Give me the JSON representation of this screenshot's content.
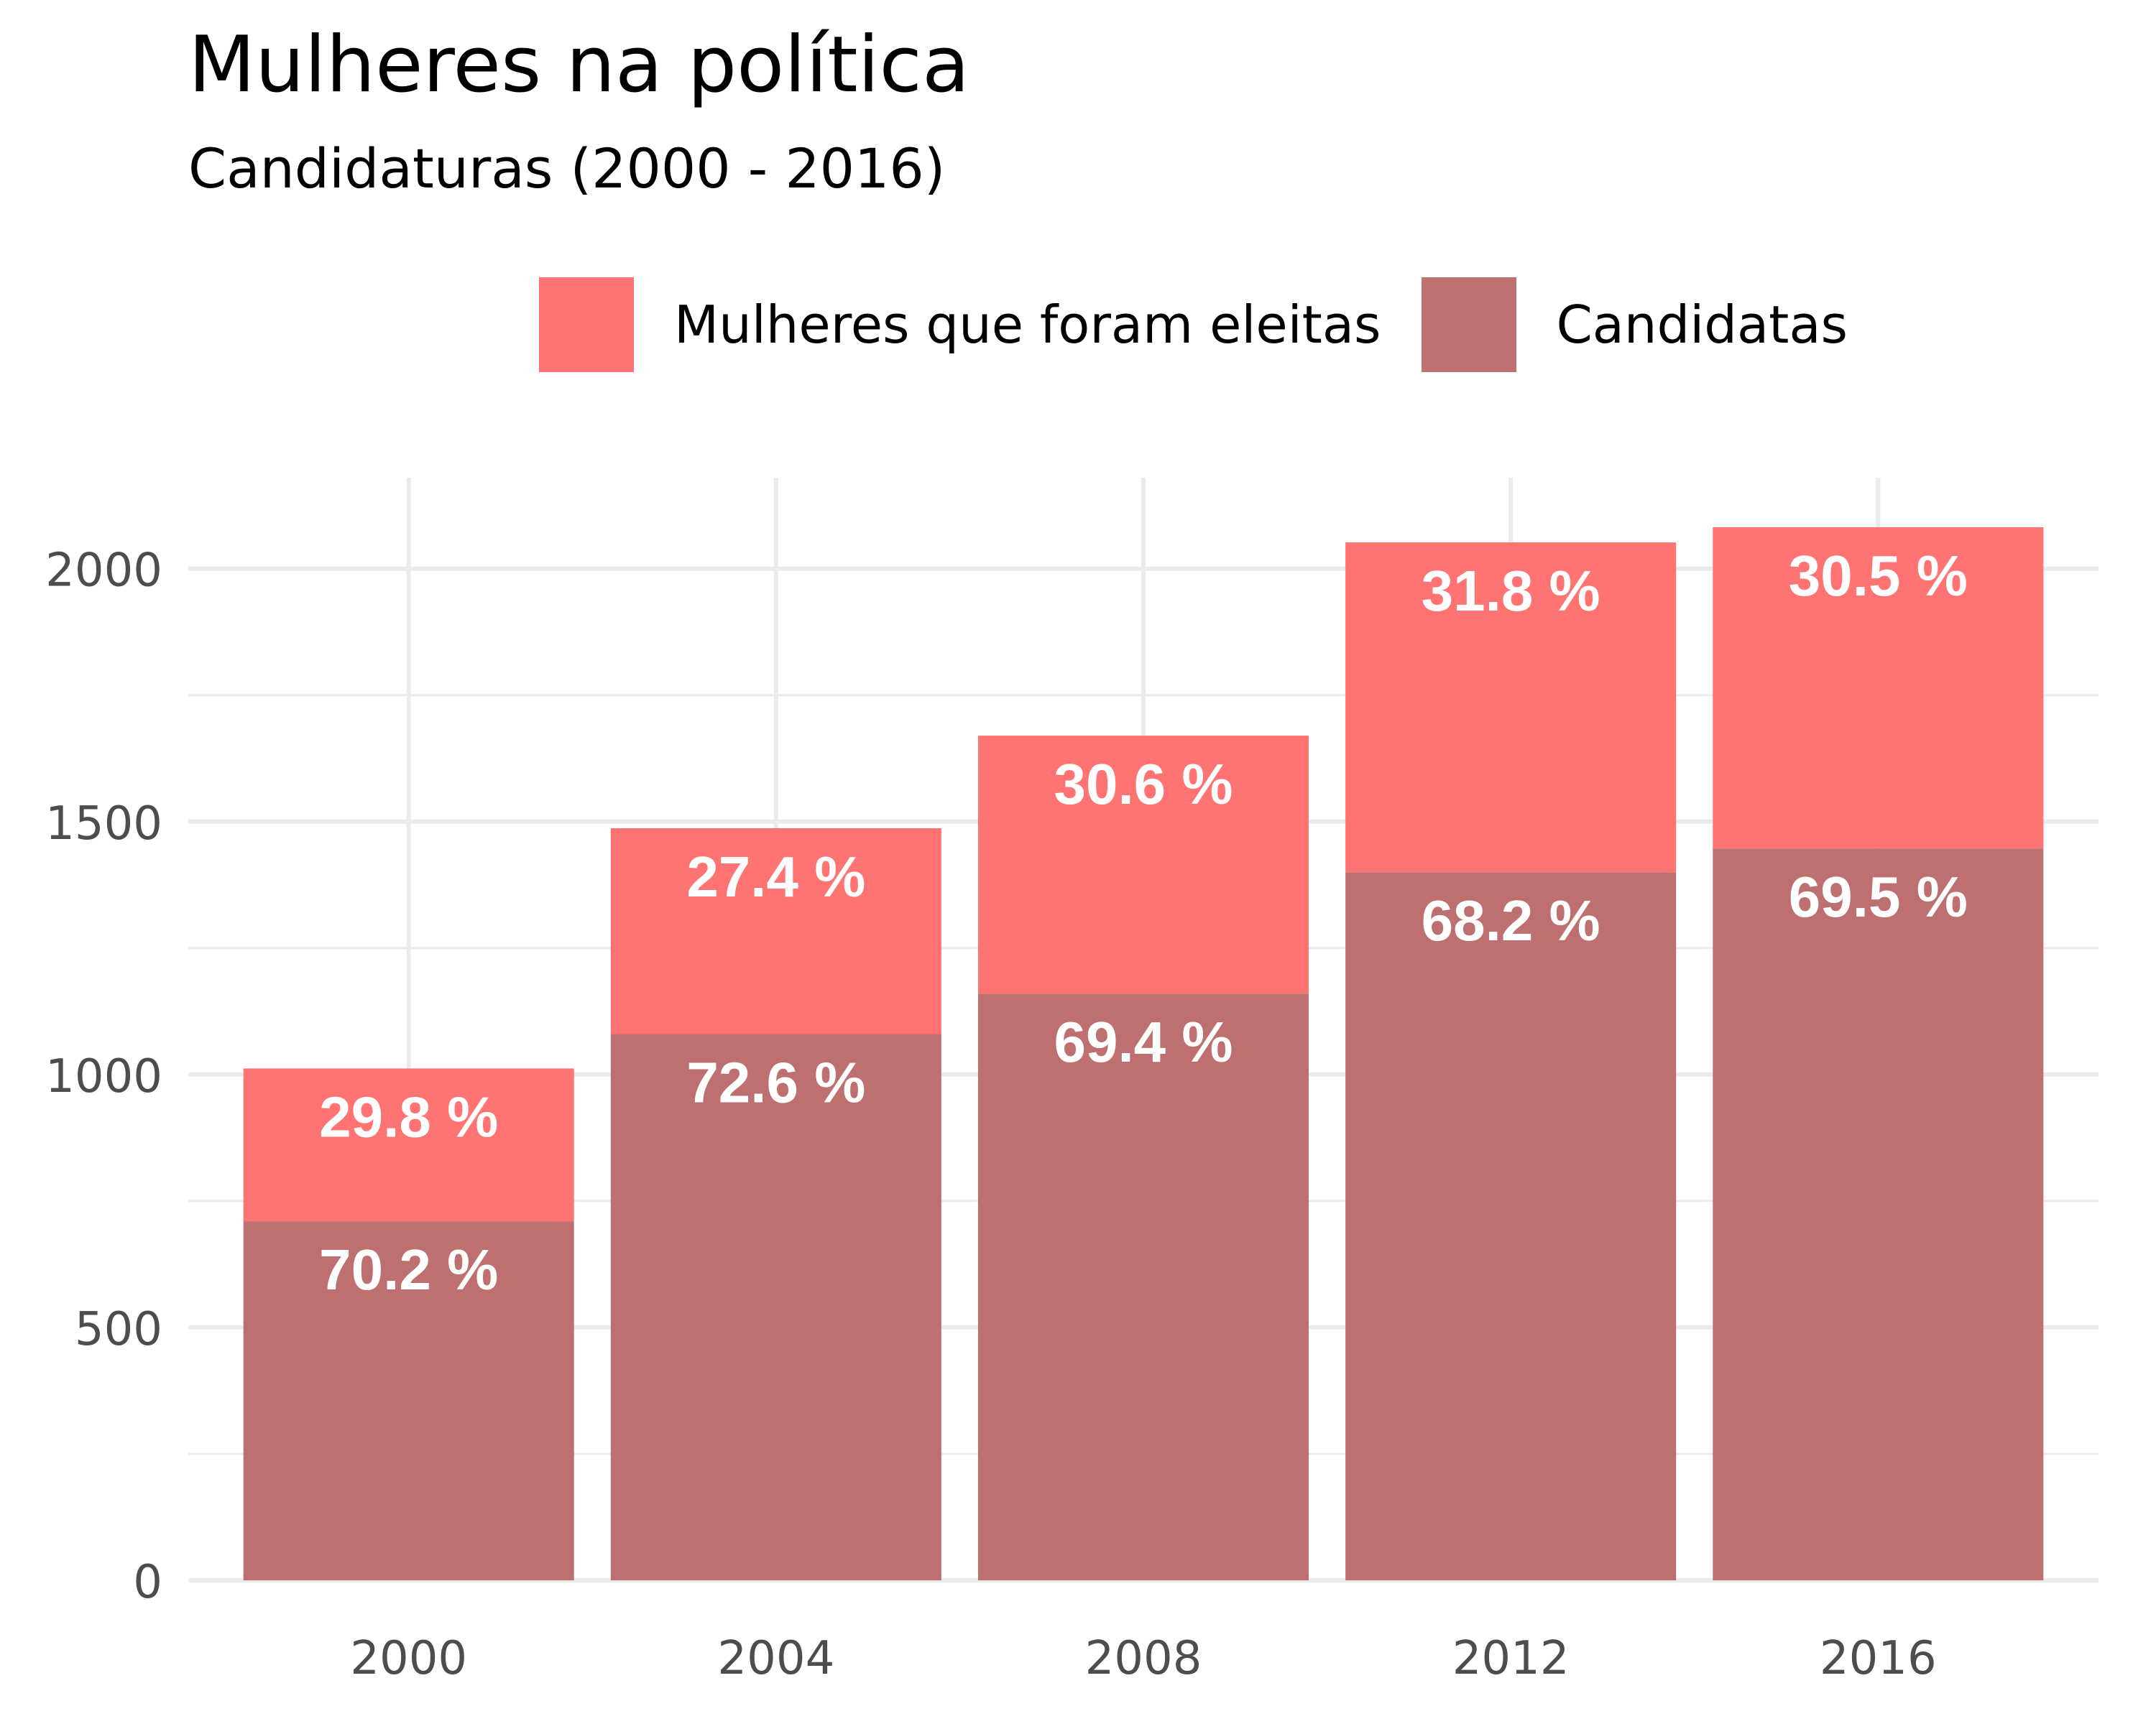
{
  "chart_data": {
    "type": "bar",
    "stacked": true,
    "title": "Mulheres na política",
    "subtitle": "Candidaturas (2000 - 2016)",
    "xlabel": "",
    "ylabel": "",
    "categories": [
      "2000",
      "2004",
      "2008",
      "2012",
      "2016"
    ],
    "y_ticks": [
      0,
      500,
      1000,
      1500,
      2000
    ],
    "ylim": [
      0,
      2180
    ],
    "grid": true,
    "legend_position": "top",
    "series": [
      {
        "name": "Candidatas",
        "color": "#BE7070",
        "values": [
          710,
          1080,
          1160,
          1400,
          1447
        ],
        "labels": [
          "70.2 %",
          "72.6 %",
          "69.4 %",
          "68.2 %",
          "69.5 %"
        ]
      },
      {
        "name": "Mulheres que foram eleitas",
        "color": "#FF7373",
        "values": [
          302,
          407,
          510,
          652,
          635
        ],
        "labels": [
          "29.8 %",
          "27.4 %",
          "30.6 %",
          "31.8 %",
          "30.5 %"
        ]
      }
    ]
  }
}
